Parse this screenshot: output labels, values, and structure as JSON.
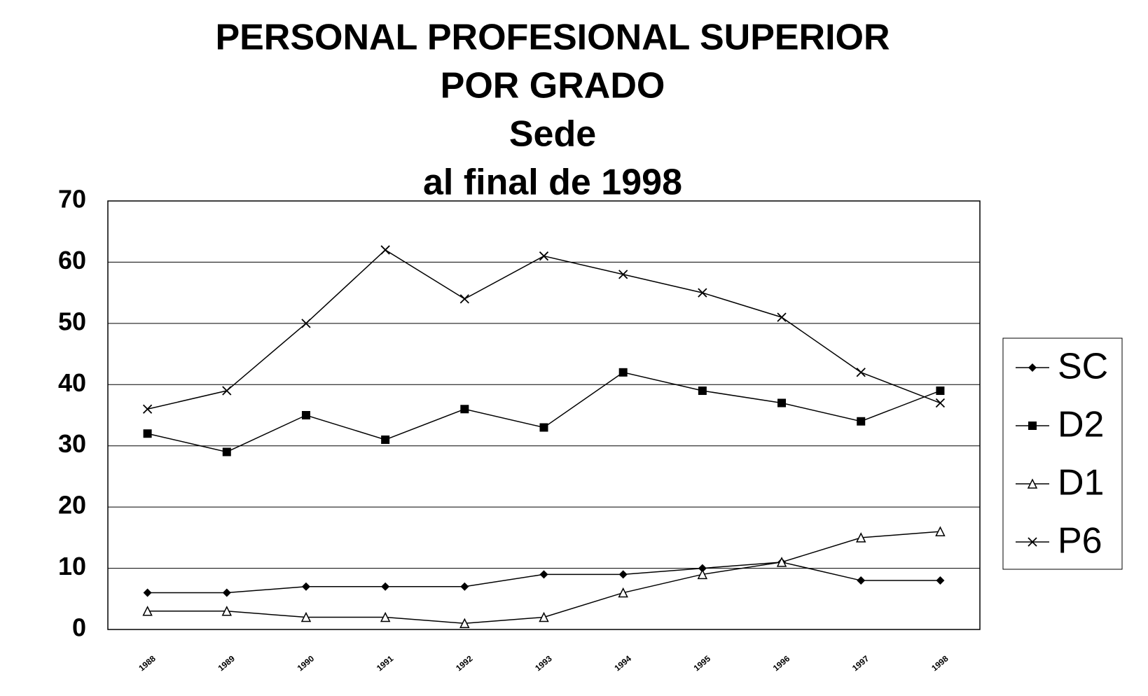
{
  "chart_data": {
    "type": "line",
    "title": [
      "PERSONAL PROFESIONAL SUPERIOR",
      "POR GRADO",
      "Sede",
      "al final de 1998"
    ],
    "categories": [
      "1988",
      "1989",
      "1990",
      "1991",
      "1992",
      "1993",
      "1994",
      "1995",
      "1996",
      "1997",
      "1998"
    ],
    "series": [
      {
        "name": "SC",
        "color": "#000000",
        "marker": "diamond",
        "values": [
          6,
          6,
          7,
          7,
          7,
          9,
          9,
          10,
          11,
          8,
          8
        ]
      },
      {
        "name": "D2",
        "color": "#000000",
        "marker": "square",
        "values": [
          32,
          29,
          35,
          31,
          36,
          33,
          42,
          39,
          37,
          34,
          39
        ]
      },
      {
        "name": "D1",
        "color": "#000000",
        "marker": "triangle-open",
        "values": [
          3,
          3,
          2,
          2,
          1,
          2,
          6,
          9,
          11,
          15,
          16
        ]
      },
      {
        "name": "P6",
        "color": "#000000",
        "marker": "x",
        "values": [
          36,
          39,
          50,
          62,
          54,
          61,
          58,
          55,
          51,
          42,
          37
        ]
      }
    ],
    "ylim": [
      0,
      70
    ],
    "yticks": [
      0,
      10,
      20,
      30,
      40,
      50,
      60,
      70
    ],
    "grid": true,
    "legend": "right"
  }
}
